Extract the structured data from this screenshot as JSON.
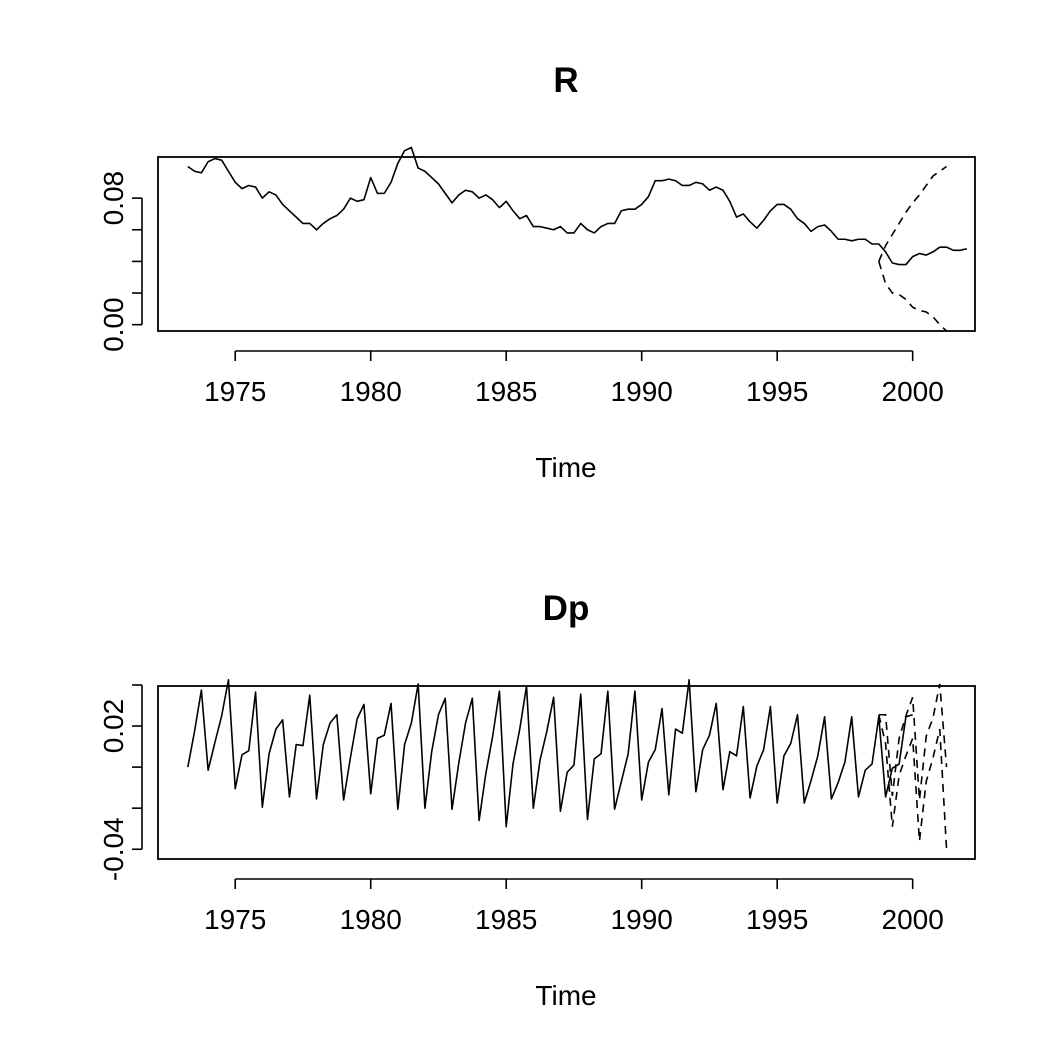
{
  "chart_data": [
    {
      "type": "line",
      "title": "R",
      "xlabel": "Time",
      "ylabel": "",
      "xlim": [
        1972.15,
        2002.3
      ],
      "ylim": [
        -0.004,
        0.106
      ],
      "x_ticks": [
        1975,
        1980,
        1985,
        1990,
        1995,
        2000
      ],
      "x_tick_labels": [
        "1975",
        "1980",
        "1985",
        "1990",
        "1995",
        "2000"
      ],
      "y_ticks": [
        0.0,
        0.02,
        0.04,
        0.06,
        0.08
      ],
      "y_tick_labels": [
        "0.00",
        "",
        "",
        "",
        "0.08"
      ],
      "series": [
        {
          "role": "observed",
          "style": "solid",
          "x_start": 1973.25,
          "x_step": 0.25,
          "values": [
            0.1,
            0.097,
            0.096,
            0.103,
            0.105,
            0.104,
            0.097,
            0.09,
            0.086,
            0.088,
            0.087,
            0.08,
            0.084,
            0.082,
            0.076,
            0.072,
            0.068,
            0.064,
            0.064,
            0.06,
            0.064,
            0.067,
            0.069,
            0.073,
            0.08,
            0.078,
            0.079,
            0.093,
            0.083,
            0.083,
            0.09,
            0.102,
            0.11,
            0.112,
            0.099,
            0.097,
            0.093,
            0.089,
            0.083,
            0.077,
            0.082,
            0.085,
            0.084,
            0.08,
            0.082,
            0.079,
            0.074,
            0.078,
            0.072,
            0.067,
            0.069,
            0.062,
            0.062,
            0.061,
            0.06,
            0.062,
            0.058,
            0.058,
            0.064,
            0.06,
            0.058,
            0.062,
            0.064,
            0.064,
            0.072,
            0.073,
            0.073,
            0.076,
            0.081,
            0.091,
            0.091,
            0.092,
            0.091,
            0.088,
            0.088,
            0.09,
            0.089,
            0.085,
            0.087,
            0.085,
            0.078,
            0.068,
            0.07,
            0.065,
            0.061,
            0.066,
            0.072,
            0.076,
            0.076,
            0.073,
            0.067,
            0.064,
            0.059,
            0.062,
            0.063,
            0.059,
            0.054,
            0.054,
            0.053,
            0.054,
            0.054,
            0.051,
            0.051,
            0.046,
            0.039,
            0.038,
            0.038,
            0.043,
            0.045,
            0.044,
            0.046,
            0.049,
            0.049,
            0.047,
            0.047,
            0.048
          ]
        },
        {
          "role": "upper bound",
          "style": "dashed",
          "x_start": 1998.75,
          "x_step": 0.25,
          "values": [
            0.04,
            0.05,
            0.057,
            0.064,
            0.071,
            0.077,
            0.082,
            0.088,
            0.094,
            0.097,
            0.1
          ]
        },
        {
          "role": "lower bound",
          "style": "dashed",
          "x_start": 1998.75,
          "x_step": 0.25,
          "values": [
            0.04,
            0.026,
            0.02,
            0.019,
            0.016,
            0.011,
            0.009,
            0.008,
            0.005,
            0.0,
            -0.004
          ]
        }
      ]
    },
    {
      "type": "line",
      "title": "Dp",
      "xlabel": "Time",
      "ylabel": "",
      "xlim": [
        1972.15,
        2002.3
      ],
      "ylim": [
        -0.04475,
        0.0395
      ],
      "x_ticks": [
        1975,
        1980,
        1985,
        1990,
        1995,
        2000
      ],
      "x_tick_labels": [
        "1975",
        "1980",
        "1985",
        "1990",
        "1995",
        "2000"
      ],
      "y_ticks": [
        -0.04,
        -0.02,
        0.0,
        0.02,
        0.04
      ],
      "y_tick_labels": [
        "-0.04",
        "",
        "",
        "0.02",
        ""
      ],
      "series": [
        {
          "role": "observed",
          "style": "solid",
          "x_start": 1973.25,
          "x_step": 0.25,
          "values": [
            0.0,
            0.0175,
            0.0375,
            -0.0015,
            0.012,
            0.025,
            0.0425,
            -0.0105,
            0.006,
            0.008,
            0.0365,
            -0.0195,
            0.0065,
            0.0185,
            0.023,
            -0.0145,
            0.011,
            0.0105,
            0.035,
            -0.0155,
            0.011,
            0.0215,
            0.0255,
            -0.016,
            0.0045,
            0.0235,
            0.0305,
            -0.013,
            0.014,
            0.0155,
            0.031,
            -0.0205,
            0.011,
            0.0215,
            0.0405,
            -0.02,
            0.0075,
            0.0255,
            0.0335,
            -0.0205,
            0.002,
            0.0215,
            0.0335,
            -0.026,
            -0.003,
            0.015,
            0.037,
            -0.029,
            0.0015,
            0.0185,
            0.0395,
            -0.02,
            0.0035,
            0.0175,
            0.034,
            -0.0215,
            -0.0025,
            0.001,
            0.0355,
            -0.0255,
            0.004,
            0.0065,
            0.037,
            -0.0205,
            -0.007,
            0.0065,
            0.037,
            -0.016,
            0.0025,
            0.0085,
            0.0285,
            -0.0135,
            0.0185,
            0.0165,
            0.0425,
            -0.012,
            0.0085,
            0.0155,
            0.031,
            -0.011,
            0.0075,
            0.0055,
            0.0295,
            -0.015,
            0.0005,
            0.0085,
            0.0295,
            -0.0175,
            0.0055,
            0.0115,
            0.0255,
            -0.0175,
            -0.0065,
            0.0055,
            0.0245,
            -0.0155,
            -0.0075,
            0.0025,
            0.0245,
            -0.0145,
            -0.0015,
            0.0015,
            0.0245,
            -0.0145,
            -0.0005,
            0.0015,
            0.0245,
            0.0255
          ]
        },
        {
          "role": "upper bound",
          "style": "dashed",
          "x_start": 1998.75,
          "x_step": 0.25,
          "values": [
            0.0255,
            0.0255,
            -0.014,
            0.014,
            0.025,
            0.034,
            -0.016,
            0.015,
            0.024,
            0.0405,
            0.0
          ]
        },
        {
          "role": "lower bound",
          "style": "dashed",
          "x_start": 1998.75,
          "x_step": 0.25,
          "values": [
            0.0255,
            0.0115,
            -0.029,
            -0.004,
            0.0055,
            0.014,
            -0.036,
            -0.007,
            0.0045,
            0.0185,
            -0.04
          ]
        }
      ]
    }
  ]
}
